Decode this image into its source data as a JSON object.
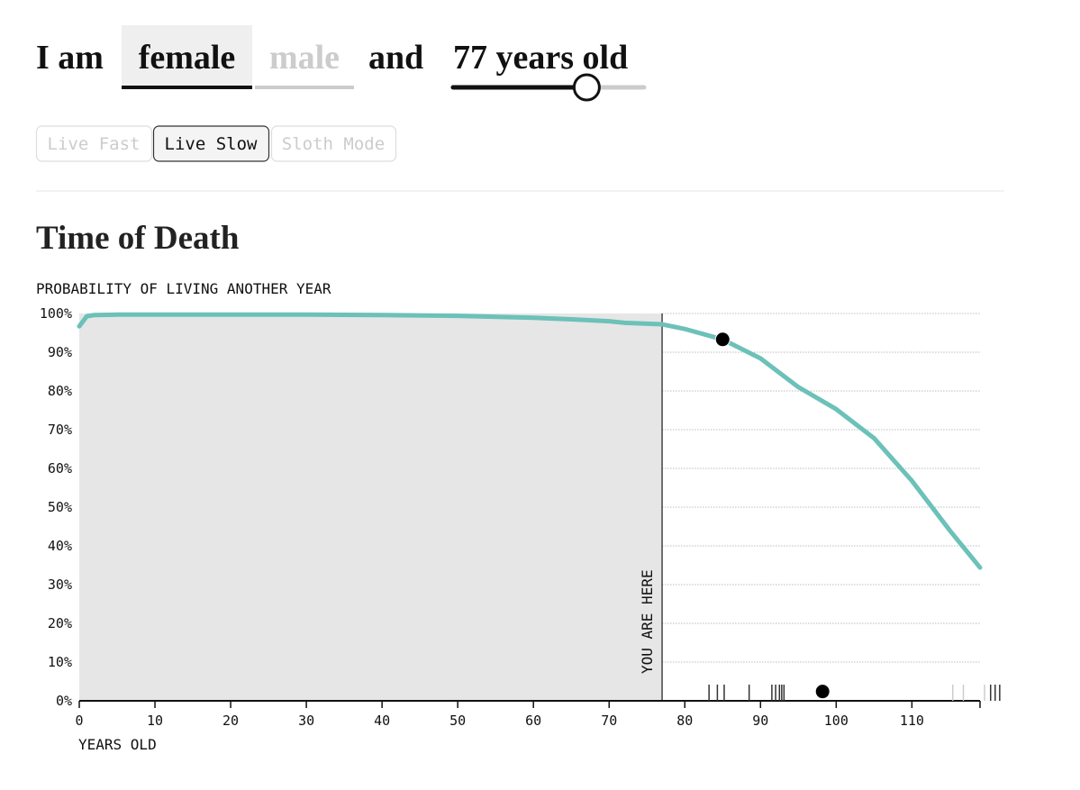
{
  "header": {
    "prefix": "I am",
    "options": [
      "female",
      "male"
    ],
    "selected": 0,
    "conjunction": "and",
    "age_label": "77 years old",
    "slider": {
      "value": 77,
      "range": [
        0,
        110
      ]
    }
  },
  "modes": {
    "buttons": [
      "Live Fast",
      "Live Slow",
      "Sloth Mode"
    ],
    "selected": 1
  },
  "section_title": "Time of Death",
  "chart_data": {
    "type": "line",
    "y_axis_title": "PROBABILITY OF LIVING ANOTHER YEAR",
    "x_axis_title": "YEARS OLD",
    "x": [
      0,
      1,
      2,
      5,
      10,
      20,
      30,
      40,
      50,
      60,
      65,
      70,
      72,
      77,
      80,
      85,
      90,
      95,
      100,
      105,
      110,
      115,
      119
    ],
    "values": [
      96.7,
      99.3,
      99.6,
      99.7,
      99.7,
      99.7,
      99.7,
      99.6,
      99.4,
      98.9,
      98.5,
      98.0,
      97.6,
      97.2,
      96.0,
      93.3,
      88.4,
      81.0,
      75.3,
      67.8,
      56.8,
      44.0,
      34.4
    ],
    "color": "#6cc1b8",
    "xlim": [
      0,
      119
    ],
    "ylim": [
      0,
      100
    ],
    "xticks": [
      0,
      10,
      20,
      30,
      40,
      50,
      60,
      70,
      80,
      90,
      100,
      110
    ],
    "yticks": [
      {
        "value": 0,
        "label": "0%"
      },
      {
        "value": 10,
        "label": "10%"
      },
      {
        "value": 20,
        "label": "20%"
      },
      {
        "value": 30,
        "label": "30%"
      },
      {
        "value": 40,
        "label": "40%"
      },
      {
        "value": 50,
        "label": "50%"
      },
      {
        "value": 60,
        "label": "60%"
      },
      {
        "value": 70,
        "label": "70%"
      },
      {
        "value": 80,
        "label": "80%"
      },
      {
        "value": 90,
        "label": "90%"
      },
      {
        "value": 100,
        "label": "100%"
      }
    ],
    "grid": true,
    "you_are_here": {
      "x": 77,
      "label": "YOU ARE HERE"
    },
    "points": [
      {
        "x": 85,
        "y": 93.3
      },
      {
        "x": 98.2,
        "y": 2.4
      }
    ],
    "rug": [
      {
        "color": "#333",
        "x": [
          83.2,
          84.3,
          85.2,
          88.5,
          91.5,
          92.0,
          92.5,
          92.8,
          93.1,
          120.4,
          121.0,
          121.6
        ]
      },
      {
        "color": "#ccc",
        "x": [
          115.4,
          116.8,
          119.6
        ]
      }
    ]
  }
}
